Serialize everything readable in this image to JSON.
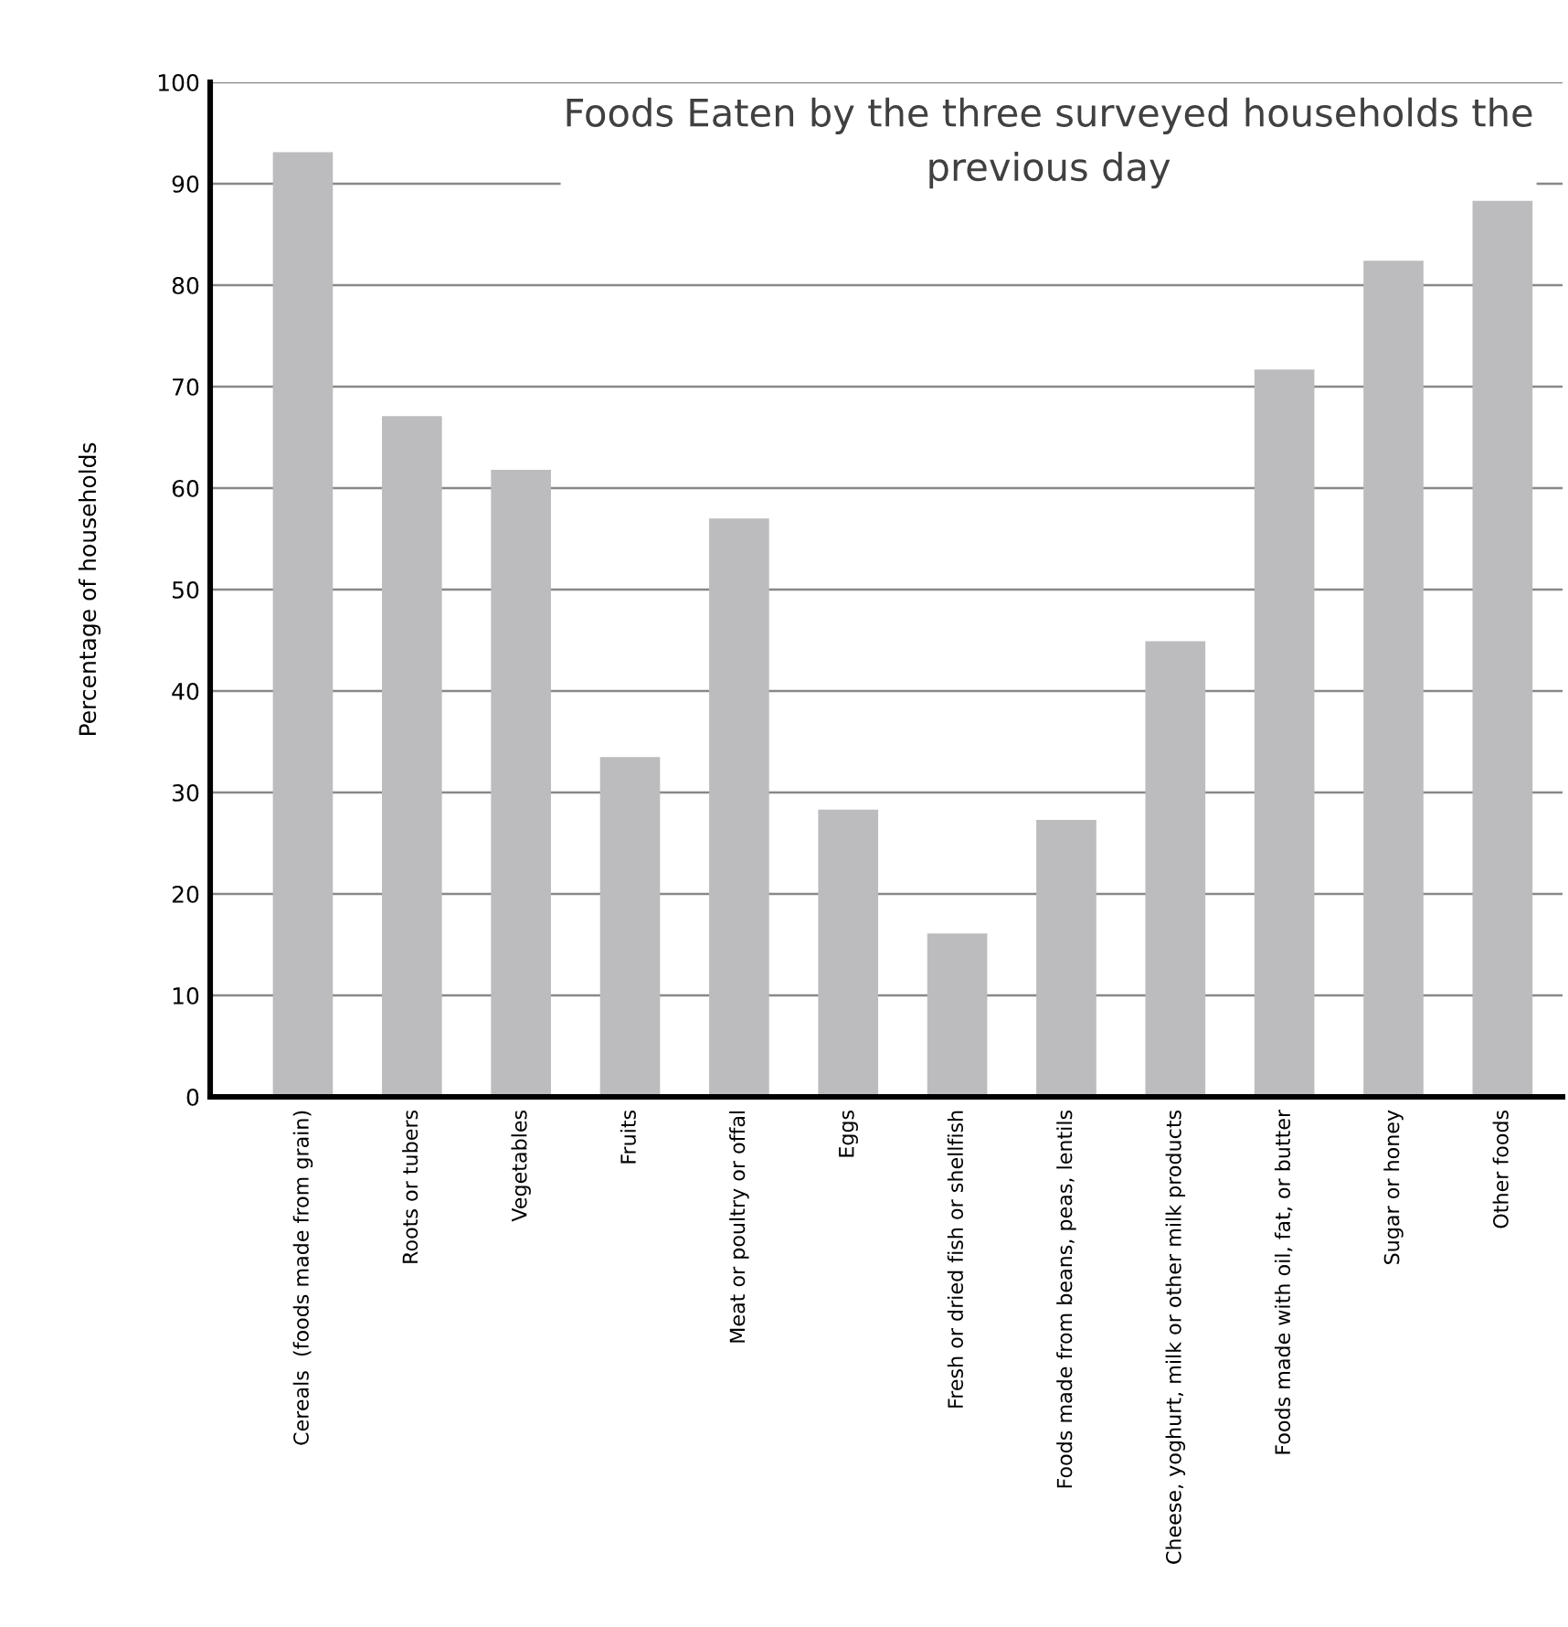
{
  "chart_data": {
    "type": "bar",
    "title": "Foods Eaten by the three surveyed households the previous day",
    "ylabel": "Percentage of households",
    "categories": [
      "Cereals  (foods made from grain)",
      "Roots or tubers",
      "Vegetables",
      "Fruits",
      "Meat or poultry or offal",
      "Eggs",
      "Fresh or dried fish or shellfish",
      "Foods made from beans, peas, lentils",
      "Cheese, yoghurt, milk or other milk products",
      "Foods made with oil, fat, or butter",
      "Sugar or honey",
      "Other foods"
    ],
    "values": [
      93.1,
      67.1,
      61.8,
      33.5,
      57.0,
      28.3,
      16.1,
      27.3,
      44.9,
      71.7,
      82.4,
      88.3
    ],
    "color": "#bcbcbe",
    "ylim": [
      0,
      100
    ],
    "yticks": [
      0,
      10,
      20,
      30,
      40,
      50,
      60,
      70,
      80,
      90,
      100
    ],
    "grid": "y"
  }
}
